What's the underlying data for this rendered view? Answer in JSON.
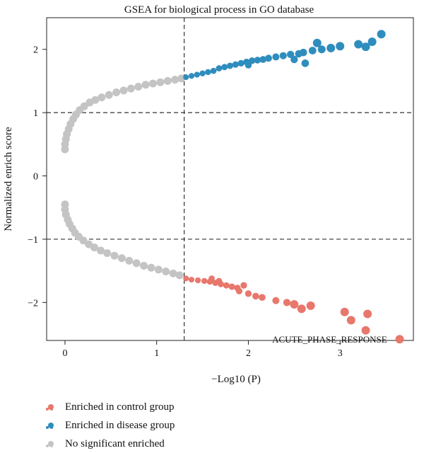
{
  "chart_data": {
    "type": "scatter",
    "title": "GSEA for biological process in GO database",
    "xlabel": "−Log10 (P)",
    "ylabel": "Normalized enrich score",
    "xlim": [
      -0.2,
      3.8
    ],
    "ylim": [
      -2.6,
      2.5
    ],
    "xticks": [
      0,
      1,
      2,
      3
    ],
    "yticks": [
      -2,
      -1,
      0,
      1,
      2
    ],
    "reference_lines": {
      "vertical_x": 1.3,
      "horizontal_y": [
        1,
        -1
      ],
      "style": "dashed"
    },
    "grid": false,
    "legend_position": "bottom-left",
    "annotations": [
      {
        "text": "ACUTE_PHASE_RESPONSE",
        "x": 3.05,
        "y": -2.58
      }
    ],
    "colors": {
      "control": "#E8776C",
      "disease": "#2F8DBE",
      "none": "#C4C4C4"
    },
    "series": [
      {
        "name": "No significant enriched",
        "key": "none",
        "points": [
          [
            0.0,
            0.42
          ],
          [
            0.0,
            0.5
          ],
          [
            0.01,
            0.58
          ],
          [
            0.02,
            0.66
          ],
          [
            0.04,
            0.74
          ],
          [
            0.06,
            0.82
          ],
          [
            0.09,
            0.9
          ],
          [
            0.12,
            0.97
          ],
          [
            0.16,
            1.04
          ],
          [
            0.21,
            1.1
          ],
          [
            0.27,
            1.16
          ],
          [
            0.33,
            1.2
          ],
          [
            0.4,
            1.24
          ],
          [
            0.48,
            1.28
          ],
          [
            0.56,
            1.32
          ],
          [
            0.64,
            1.35
          ],
          [
            0.72,
            1.38
          ],
          [
            0.8,
            1.41
          ],
          [
            0.88,
            1.44
          ],
          [
            0.96,
            1.46
          ],
          [
            1.04,
            1.48
          ],
          [
            1.12,
            1.5
          ],
          [
            1.2,
            1.52
          ],
          [
            1.27,
            1.54
          ],
          [
            0.0,
            -0.45
          ],
          [
            0.0,
            -0.53
          ],
          [
            0.01,
            -0.61
          ],
          [
            0.03,
            -0.69
          ],
          [
            0.05,
            -0.76
          ],
          [
            0.08,
            -0.83
          ],
          [
            0.11,
            -0.9
          ],
          [
            0.15,
            -0.96
          ],
          [
            0.2,
            -1.02
          ],
          [
            0.26,
            -1.08
          ],
          [
            0.32,
            -1.13
          ],
          [
            0.39,
            -1.18
          ],
          [
            0.46,
            -1.22
          ],
          [
            0.54,
            -1.26
          ],
          [
            0.62,
            -1.3
          ],
          [
            0.7,
            -1.34
          ],
          [
            0.78,
            -1.38
          ],
          [
            0.86,
            -1.42
          ],
          [
            0.94,
            -1.45
          ],
          [
            1.02,
            -1.48
          ],
          [
            1.1,
            -1.51
          ],
          [
            1.18,
            -1.54
          ],
          [
            1.25,
            -1.57
          ]
        ]
      },
      {
        "name": "Enriched in disease group",
        "key": "disease",
        "points": [
          [
            1.32,
            1.56
          ],
          [
            1.38,
            1.58
          ],
          [
            1.44,
            1.6
          ],
          [
            1.5,
            1.62
          ],
          [
            1.56,
            1.64
          ],
          [
            1.62,
            1.66
          ],
          [
            1.68,
            1.7
          ],
          [
            1.74,
            1.72
          ],
          [
            1.8,
            1.74
          ],
          [
            1.86,
            1.76
          ],
          [
            1.92,
            1.78
          ],
          [
            1.98,
            1.8
          ],
          [
            2.04,
            1.82
          ],
          [
            2.1,
            1.83
          ],
          [
            2.16,
            1.84
          ],
          [
            2.22,
            1.86
          ],
          [
            2.3,
            1.88
          ],
          [
            2.38,
            1.9
          ],
          [
            2.46,
            1.92
          ],
          [
            2.55,
            1.93
          ],
          [
            2.6,
            1.95
          ],
          [
            2.7,
            1.98
          ],
          [
            2.8,
            2.0
          ],
          [
            2.9,
            2.02
          ],
          [
            3.0,
            2.05
          ],
          [
            3.2,
            2.08
          ],
          [
            3.35,
            2.12
          ],
          [
            2.0,
            1.75
          ],
          [
            2.5,
            1.84
          ],
          [
            2.62,
            1.78
          ],
          [
            3.28,
            2.04
          ],
          [
            3.45,
            2.24
          ],
          [
            2.75,
            2.1
          ]
        ]
      },
      {
        "name": "Enriched in control group",
        "key": "control",
        "points": [
          [
            1.32,
            -1.62
          ],
          [
            1.38,
            -1.64
          ],
          [
            1.45,
            -1.65
          ],
          [
            1.52,
            -1.66
          ],
          [
            1.58,
            -1.67
          ],
          [
            1.64,
            -1.69
          ],
          [
            1.7,
            -1.71
          ],
          [
            1.76,
            -1.73
          ],
          [
            1.82,
            -1.75
          ],
          [
            1.88,
            -1.77
          ],
          [
            1.6,
            -1.62
          ],
          [
            1.68,
            -1.66
          ],
          [
            1.9,
            -1.82
          ],
          [
            1.95,
            -1.73
          ],
          [
            2.0,
            -1.86
          ],
          [
            2.08,
            -1.9
          ],
          [
            2.15,
            -1.92
          ],
          [
            2.3,
            -1.97
          ],
          [
            2.42,
            -2.0
          ],
          [
            2.5,
            -2.03
          ],
          [
            2.58,
            -2.1
          ],
          [
            2.68,
            -2.05
          ],
          [
            3.05,
            -2.15
          ],
          [
            3.12,
            -2.28
          ],
          [
            3.3,
            -2.18
          ],
          [
            3.28,
            -2.44
          ],
          [
            3.65,
            -2.58
          ]
        ]
      }
    ]
  },
  "legend": {
    "items": [
      {
        "label": "Enriched in control group",
        "color": "#E8776C"
      },
      {
        "label": "Enriched in disease group",
        "color": "#2F8DBE"
      },
      {
        "label": "No significant enriched",
        "color": "#C4C4C4"
      }
    ]
  }
}
